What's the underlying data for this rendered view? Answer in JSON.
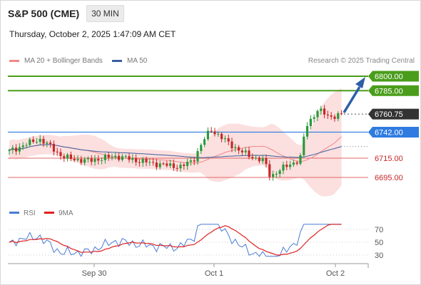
{
  "header": {
    "instrument": "S&P 500 (CME)",
    "interval": "30 MIN",
    "datetime": "Thursday, October 2, 2025 1:47:09 AM CET"
  },
  "legend": {
    "bollinger": "MA 20 + Bollinger Bands",
    "ma50": "MA 50",
    "credit": "Research © 2025 Trading Central"
  },
  "indicator_legend": {
    "rsi": "RSI",
    "ma9": "9MA"
  },
  "colors": {
    "bull": "#2a9a3a",
    "bear": "#c62828",
    "resistance": "#4a9d1b",
    "support": "#2f7be0",
    "minor": "#e06a6a",
    "ma20": "#f08888",
    "ma50": "#3a5f9f",
    "band": "#fbd4d4",
    "rsi": "#4a7bd6",
    "rsi_ma": "#e02020",
    "arrow": "#2d5fa8",
    "current": "#333333"
  },
  "chart_data": [
    {
      "type": "line",
      "title": "",
      "series": [
        {
          "name": "MA 20 + Bollinger Bands"
        },
        {
          "name": "MA 50"
        }
      ],
      "price_levels": [
        {
          "value": 6800,
          "label": "6800.00",
          "kind": "resistance"
        },
        {
          "value": 6785,
          "label": "6785.00",
          "kind": "resistance"
        },
        {
          "value": 6760.75,
          "label": "6760.75",
          "kind": "current"
        },
        {
          "value": 6742,
          "label": "6742.00",
          "kind": "support"
        },
        {
          "value": 6715,
          "label": "6715.00",
          "kind": "minor"
        },
        {
          "value": 6695,
          "label": "6695.00",
          "kind": "minor"
        }
      ],
      "x_ticks": [
        "Sep 30",
        "Oct 1",
        "Oct 2"
      ],
      "forecast": "up"
    },
    {
      "type": "line",
      "title": "",
      "series": [
        {
          "name": "RSI"
        },
        {
          "name": "9MA"
        }
      ],
      "ylim": [
        0,
        100
      ],
      "y_ticks": [
        70,
        50,
        30
      ]
    }
  ]
}
